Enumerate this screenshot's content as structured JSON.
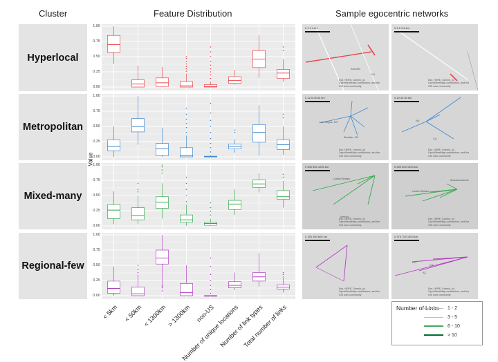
{
  "headers": {
    "cluster": "Cluster",
    "features": "Feature Distribution",
    "networks": "Sample egocentric networks"
  },
  "clusters": [
    {
      "name": "Hyperlocal",
      "color": "#e8474c"
    },
    {
      "name": "Metropolitan",
      "color": "#3b86cf"
    },
    {
      "name": "Mixed-many",
      "color": "#35a84c"
    },
    {
      "name": "Regional-few",
      "color": "#b13ec1"
    }
  ],
  "chart_data": {
    "type": "box",
    "ylabel": "Value",
    "ylim": [
      0,
      1
    ],
    "yticks": [
      "0.00",
      "0.25",
      "0.50",
      "0.75",
      "1.00"
    ],
    "categories": [
      "< 5km",
      "< 50km",
      "< 1300km",
      "> 1300km",
      "non-US",
      "Number of unique locations",
      "Number of link types",
      "Total number of links"
    ],
    "series": [
      {
        "name": "Hyperlocal",
        "boxes": [
          {
            "min": 0.38,
            "q1": 0.57,
            "med": 0.7,
            "q3": 0.85,
            "max": 1.0
          },
          {
            "min": 0.0,
            "q1": 0.0,
            "med": 0.05,
            "q3": 0.12,
            "max": 0.35
          },
          {
            "min": 0.0,
            "q1": 0.01,
            "med": 0.07,
            "q3": 0.15,
            "max": 0.33
          },
          {
            "min": 0.0,
            "q1": 0.0,
            "med": 0.02,
            "q3": 0.09,
            "max": 0.22,
            "out": [
              0.26,
              0.3,
              0.34,
              0.38,
              0.42,
              0.47,
              0.5
            ]
          },
          {
            "min": 0.0,
            "q1": 0.0,
            "med": 0.01,
            "q3": 0.04,
            "max": 0.09,
            "out": [
              0.14,
              0.2,
              0.25,
              0.3,
              0.36,
              0.42,
              0.5,
              0.58,
              0.66
            ]
          },
          {
            "min": 0.04,
            "q1": 0.06,
            "med": 0.11,
            "q3": 0.17,
            "max": 0.28
          },
          {
            "min": 0.15,
            "q1": 0.32,
            "med": 0.46,
            "q3": 0.6,
            "max": 0.85
          },
          {
            "min": 0.09,
            "q1": 0.14,
            "med": 0.23,
            "q3": 0.29,
            "max": 0.46,
            "out": [
              0.6,
              0.66
            ]
          }
        ]
      },
      {
        "name": "Metropolitan",
        "boxes": [
          {
            "min": 0.0,
            "q1": 0.1,
            "med": 0.17,
            "q3": 0.28,
            "max": 0.5
          },
          {
            "min": 0.2,
            "q1": 0.41,
            "med": 0.5,
            "q3": 0.63,
            "max": 1.0
          },
          {
            "min": 0.0,
            "q1": 0.02,
            "med": 0.13,
            "q3": 0.22,
            "max": 0.48
          },
          {
            "min": 0.0,
            "q1": 0.0,
            "med": 0.02,
            "q3": 0.15,
            "max": 0.35,
            "out": [
              0.4,
              0.48,
              0.55,
              0.62,
              0.7,
              0.8
            ]
          },
          {
            "min": 0.0,
            "q1": 0.0,
            "med": 0.0,
            "q3": 0.01,
            "max": 0.03,
            "out": [
              0.08,
              0.15,
              0.22,
              0.3,
              0.4,
              0.5,
              0.6,
              0.72,
              0.88
            ]
          },
          {
            "min": 0.07,
            "q1": 0.13,
            "med": 0.17,
            "q3": 0.21,
            "max": 0.29,
            "out": [
              0.4,
              0.44
            ]
          },
          {
            "min": 0.02,
            "q1": 0.24,
            "med": 0.4,
            "q3": 0.53,
            "max": 0.85
          },
          {
            "min": 0.03,
            "q1": 0.12,
            "med": 0.2,
            "q3": 0.28,
            "max": 0.5,
            "out": [
              0.64,
              0.7
            ]
          }
        ]
      },
      {
        "name": "Mixed-many",
        "boxes": [
          {
            "min": 0.03,
            "q1": 0.12,
            "med": 0.26,
            "q3": 0.35,
            "max": 0.57
          },
          {
            "min": 0.03,
            "q1": 0.1,
            "med": 0.17,
            "q3": 0.3,
            "max": 0.5,
            "out": [
              0.56,
              0.6,
              0.7
            ]
          },
          {
            "min": 0.12,
            "q1": 0.29,
            "med": 0.39,
            "q3": 0.48,
            "max": 0.7,
            "out": [
              0.87,
              0.92,
              0.97,
              1.0
            ]
          },
          {
            "min": 0.0,
            "q1": 0.06,
            "med": 0.1,
            "q3": 0.18,
            "max": 0.35,
            "out": [
              0.4,
              0.5,
              0.6,
              0.7,
              0.8
            ]
          },
          {
            "min": 0.0,
            "q1": 0.01,
            "med": 0.04,
            "q3": 0.06,
            "max": 0.12,
            "out": [
              0.18,
              0.24,
              0.3,
              0.38
            ]
          },
          {
            "min": 0.18,
            "q1": 0.27,
            "med": 0.36,
            "q3": 0.42,
            "max": 0.6
          },
          {
            "min": 0.55,
            "q1": 0.63,
            "med": 0.69,
            "q3": 0.76,
            "max": 0.87
          },
          {
            "min": 0.3,
            "q1": 0.44,
            "med": 0.48,
            "q3": 0.58,
            "max": 0.74,
            "out": [
              0.8,
              0.85
            ]
          }
        ]
      },
      {
        "name": "Regional-few",
        "boxes": [
          {
            "min": 0.0,
            "q1": 0.04,
            "med": 0.12,
            "q3": 0.24,
            "max": 0.48
          },
          {
            "min": 0.0,
            "q1": 0.0,
            "med": 0.03,
            "q3": 0.14,
            "max": 0.35,
            "out": [
              0.38,
              0.43,
              0.5
            ]
          },
          {
            "min": 0.12,
            "q1": 0.52,
            "med": 0.62,
            "q3": 0.75,
            "max": 1.0,
            "out": [
              0.08,
              0.13,
              0.16
            ]
          },
          {
            "min": 0.0,
            "q1": 0.0,
            "med": 0.05,
            "q3": 0.2,
            "max": 0.5
          },
          {
            "min": 0.0,
            "q1": 0.0,
            "med": 0.0,
            "q3": 0.0,
            "max": 0.0,
            "out": [
              0.04,
              0.1,
              0.17,
              0.25,
              0.35,
              0.48,
              0.62
            ]
          },
          {
            "min": 0.09,
            "q1": 0.13,
            "med": 0.17,
            "q3": 0.23,
            "max": 0.38
          },
          {
            "min": 0.15,
            "q1": 0.24,
            "med": 0.31,
            "q3": 0.38,
            "max": 0.7
          },
          {
            "min": 0.05,
            "q1": 0.11,
            "med": 0.14,
            "q3": 0.18,
            "max": 0.32,
            "out": [
              0.35,
              0.38
            ]
          }
        ]
      }
    ]
  },
  "maps": [
    {
      "scale": "0   1     2          4 km",
      "attr": "Esri, HERE, Garmin, (c) OpenStreetMap contributors, and the GIS user community",
      "labels": [
        "Arundel",
        "NJ"
      ]
    },
    {
      "scale": "0   1.5   3          6 km",
      "attr": "Esri, HERE, Garmin, (c) OpenStreetMap contributors, and the GIS user community",
      "labels": []
    },
    {
      "scale": "0    12.5   25          50 km",
      "attr": "Esri, HERE, Garmin, (c) OpenStreetMap contributors, and the GIS user community",
      "labels": [
        "Las Vegas, NV",
        "Boulder, NV"
      ]
    },
    {
      "scale": "0    20    40          80 km",
      "attr": "Esri, HERE, Garmin, (c) OpenStreetMap contributors, and the GIS user community",
      "labels": [
        "NV",
        "CA"
      ]
    },
    {
      "scale": "0   300   600          1200 km",
      "attr": "Esri, HERE, Garmin, (c) OpenStreetMap contributors, and the GIS user community",
      "labels": [
        "United States",
        "Mexico"
      ]
    },
    {
      "scale": "0   300   600          1200 km",
      "attr": "Esri, HERE, Garmin, (c) OpenStreetMap contributors, and the GIS user community",
      "labels": [
        "United States",
        "Massachusetts"
      ]
    },
    {
      "scale": "0   150   300          600 km",
      "attr": "Esri, HERE, Garmin, (c) OpenStreetMap contributors, and the GIS user community",
      "labels": []
    },
    {
      "scale": "0   375   750          1500 km",
      "attr": "Esri, HERE, Garmin, (c) OpenStreetMap contributors, and the GIS user community",
      "labels": [
        "CO",
        "CA",
        "AZ"
      ]
    }
  ],
  "legend": {
    "title": "Number of Links",
    "items": [
      {
        "label": "1 - 2",
        "color": "#bdbdbd"
      },
      {
        "label": "3 - 5",
        "color": "#9ecae1"
      },
      {
        "label": "6 - 10",
        "color": "#41ab5d"
      },
      {
        "label": "> 10",
        "color": "#006d2c"
      }
    ]
  }
}
